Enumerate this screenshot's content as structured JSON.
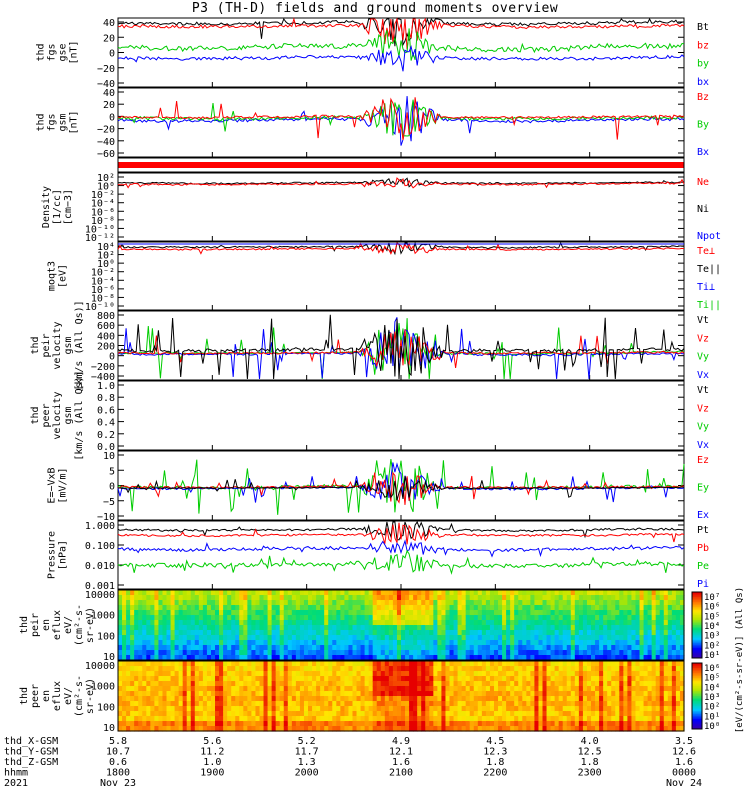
{
  "title": "P3 (TH-D) fields and ground moments overview",
  "colors": {
    "black": "#000000",
    "red": "#ff0000",
    "green": "#00cc00",
    "blue": "#0000ff"
  },
  "panels": [
    {
      "id": "fgs-gse",
      "ylabel": [
        "thd",
        "fgs",
        "gse",
        "[nT]"
      ],
      "ticks": [
        "40",
        "20",
        "0",
        "−20",
        "−40"
      ],
      "legend": [
        {
          "text": "Bt",
          "color": "black"
        },
        {
          "text": "bz",
          "color": "red"
        },
        {
          "text": "by",
          "color": "green"
        },
        {
          "text": "bx",
          "color": "blue"
        }
      ]
    },
    {
      "id": "fgs-gsm",
      "ylabel": [
        "thd",
        "fgs",
        "gsm",
        "[nT]"
      ],
      "ticks": [
        "40",
        "20",
        "0",
        "−20",
        "−40",
        "−60"
      ],
      "legend": [
        {
          "text": "Bz",
          "color": "red"
        },
        {
          "text": "By",
          "color": "green"
        },
        {
          "text": "Bx",
          "color": "blue"
        }
      ]
    },
    {
      "id": "density",
      "ylabel": [
        "Density",
        "[1/cc]",
        "[cm−3]"
      ],
      "ticks": [
        "10²",
        "10⁰",
        "10⁻²",
        "10⁻⁴",
        "10⁻⁶",
        "10⁻⁸",
        "10⁻¹⁰",
        "10⁻¹²"
      ],
      "legend": [
        {
          "text": "Ne",
          "color": "red"
        },
        {
          "text": "Ni",
          "color": "black"
        },
        {
          "text": "Npot",
          "color": "blue"
        }
      ]
    },
    {
      "id": "temp",
      "ylabel": [
        "moqt3",
        "[eV]"
      ],
      "ticks": [
        "10⁴",
        "10²",
        "10⁰",
        "10⁻²",
        "10⁻⁴",
        "10⁻⁶",
        "10⁻⁸",
        "10⁻¹⁰"
      ],
      "legend": [
        {
          "text": "Te⊥",
          "color": "red"
        },
        {
          "text": "Te||",
          "color": "black"
        },
        {
          "text": "Ti⊥",
          "color": "blue"
        },
        {
          "text": "Ti||",
          "color": "green"
        }
      ]
    },
    {
      "id": "peir-vel",
      "ylabel": [
        "thd",
        "peir",
        "velocity",
        "gsm",
        "[km/s (All Qs)]"
      ],
      "ticks": [
        "800",
        "600",
        "400",
        "200",
        "0",
        "−200",
        "−400"
      ],
      "legend": [
        {
          "text": "Vt",
          "color": "black"
        },
        {
          "text": "Vz",
          "color": "red"
        },
        {
          "text": "Vy",
          "color": "green"
        },
        {
          "text": "Vx",
          "color": "blue"
        }
      ]
    },
    {
      "id": "peer-vel",
      "ylabel": [
        "thd",
        "peer",
        "velocity",
        "gsm",
        "[km/s (All Qs)]"
      ],
      "ticks": [
        "1.0",
        "0.8",
        "0.6",
        "0.4",
        "0.2",
        "0.0"
      ],
      "legend": [
        {
          "text": "Vt",
          "color": "black"
        },
        {
          "text": "Vz",
          "color": "red"
        },
        {
          "text": "Vy",
          "color": "green"
        },
        {
          "text": "Vx",
          "color": "blue"
        }
      ]
    },
    {
      "id": "efield",
      "ylabel": [
        "E=−VxB",
        "[mV/m]"
      ],
      "ticks": [
        "10",
        "5",
        "0",
        "−5",
        "−10"
      ],
      "legend": [
        {
          "text": "Ez",
          "color": "red"
        },
        {
          "text": "Ey",
          "color": "green"
        },
        {
          "text": "Ex",
          "color": "blue"
        }
      ]
    },
    {
      "id": "pressure",
      "ylabel": [
        "Pressure",
        "[nPa]"
      ],
      "ticks": [
        "1.000",
        "0.100",
        "0.010",
        "0.001"
      ],
      "legend": [
        {
          "text": "Pt",
          "color": "black"
        },
        {
          "text": "Pb",
          "color": "red"
        },
        {
          "text": "Pe",
          "color": "green"
        },
        {
          "text": "Pi",
          "color": "blue"
        }
      ]
    },
    {
      "id": "peir-spec",
      "ylabel": [
        "thd",
        "peir",
        "en",
        "eflux",
        "eV/",
        "(cm²-s-",
        "sr-eV)"
      ],
      "ticks": [
        "10000",
        "1000",
        "100",
        "10"
      ],
      "legend": []
    },
    {
      "id": "peer-spec",
      "ylabel": [
        "thd",
        "peer",
        "en",
        "eflux",
        "eV/",
        "(cm²-s-",
        "sr-eV)"
      ],
      "ticks": [
        "10000",
        "1000",
        "100",
        "10"
      ],
      "legend": []
    }
  ],
  "colorbar": {
    "upper": [
      "10⁷",
      "10⁶",
      "10⁵",
      "10⁴",
      "10³",
      "10²",
      "10¹"
    ],
    "lower": [
      "10⁶",
      "10⁵",
      "10⁴",
      "10³",
      "10²",
      "10¹",
      "10⁰"
    ],
    "unit": "[eV/(cm²-s-sr-eV)] (All Qs)"
  },
  "footer": {
    "row_labels": [
      "thd_X-GSM",
      "thd_Y-GSM",
      "thd_Z-GSM",
      "hhmm",
      "2021"
    ],
    "x_gsm": [
      "5.8",
      "5.6",
      "5.2",
      "4.9",
      "4.5",
      "4.0",
      "3.5"
    ],
    "y_gsm": [
      "10.7",
      "11.2",
      "11.7",
      "12.1",
      "12.3",
      "12.5",
      "12.6"
    ],
    "z_gsm": [
      "0.6",
      "1.0",
      "1.3",
      "1.6",
      "1.8",
      "1.8",
      "1.6"
    ],
    "hhmm": [
      "1800",
      "1900",
      "2000",
      "2100",
      "2200",
      "2300",
      "0000"
    ],
    "dates": [
      "Nov 23",
      "",
      "",
      "",
      "",
      "",
      "Nov 24"
    ]
  },
  "chart_data": {
    "type": "line",
    "title": "P3 (TH-D) fields and ground moments overview",
    "x_ticks_hhmm": [
      "1800",
      "1900",
      "2000",
      "2100",
      "2200",
      "2300",
      "0000"
    ],
    "date_range": [
      "2021 Nov 23 1800",
      "2021 Nov 24 0000"
    ],
    "panels": [
      {
        "name": "fgs gse",
        "ylim": [
          -40,
          40
        ],
        "series": [
          {
            "name": "Bt",
            "level": 32
          },
          {
            "name": "bz",
            "level": 30
          },
          {
            "name": "by",
            "level": 10
          },
          {
            "name": "bx",
            "level": -5
          }
        ]
      },
      {
        "name": "fgs gsm",
        "ylim": [
          -70,
          40
        ],
        "series": [
          {
            "name": "Bz",
            "level": 0
          },
          {
            "name": "By",
            "level": -2
          },
          {
            "name": "Bx",
            "level": 2
          }
        ]
      },
      {
        "name": "Density",
        "scale": "log",
        "ylim": [
          "1e-12",
          "1e2"
        ],
        "series": [
          {
            "name": "Ne",
            "level": "~1"
          },
          {
            "name": "Ni",
            "level": "~1"
          }
        ]
      },
      {
        "name": "moqt3",
        "scale": "log",
        "ylim": [
          "1e-10",
          "1e4"
        ],
        "series": [
          {
            "name": "Te⊥",
            "level": "~1e3"
          },
          {
            "name": "Te||",
            "level": "~1e3"
          }
        ]
      },
      {
        "name": "peir velocity gsm",
        "ylim": [
          -400,
          800
        ],
        "series": [
          {
            "name": "Vt",
            "level": 60
          },
          {
            "name": "Vz",
            "level": 0
          },
          {
            "name": "Vy",
            "level": 0
          },
          {
            "name": "Vx",
            "level": 0
          }
        ]
      },
      {
        "name": "peer velocity gsm",
        "ylim": [
          0,
          1
        ],
        "series": []
      },
      {
        "name": "E=-VxB",
        "ylim": [
          -10,
          10
        ],
        "series": [
          {
            "name": "Ez",
            "level": 0
          },
          {
            "name": "Ey",
            "level": 0
          },
          {
            "name": "Ex",
            "level": 0
          }
        ]
      },
      {
        "name": "Pressure",
        "scale": "log",
        "ylim": [
          0.001,
          1
        ],
        "series": [
          {
            "name": "Pt",
            "level": 0.5
          },
          {
            "name": "Pb",
            "level": 0.4
          },
          {
            "name": "Pe",
            "level": 0.03
          },
          {
            "name": "Pi",
            "level": 0.1
          }
        ]
      },
      {
        "name": "peir en eflux",
        "type": "heatmap",
        "ylim": [
          5,
          25000
        ]
      },
      {
        "name": "peer en eflux",
        "type": "heatmap",
        "ylim": [
          5,
          25000
        ]
      }
    ]
  }
}
